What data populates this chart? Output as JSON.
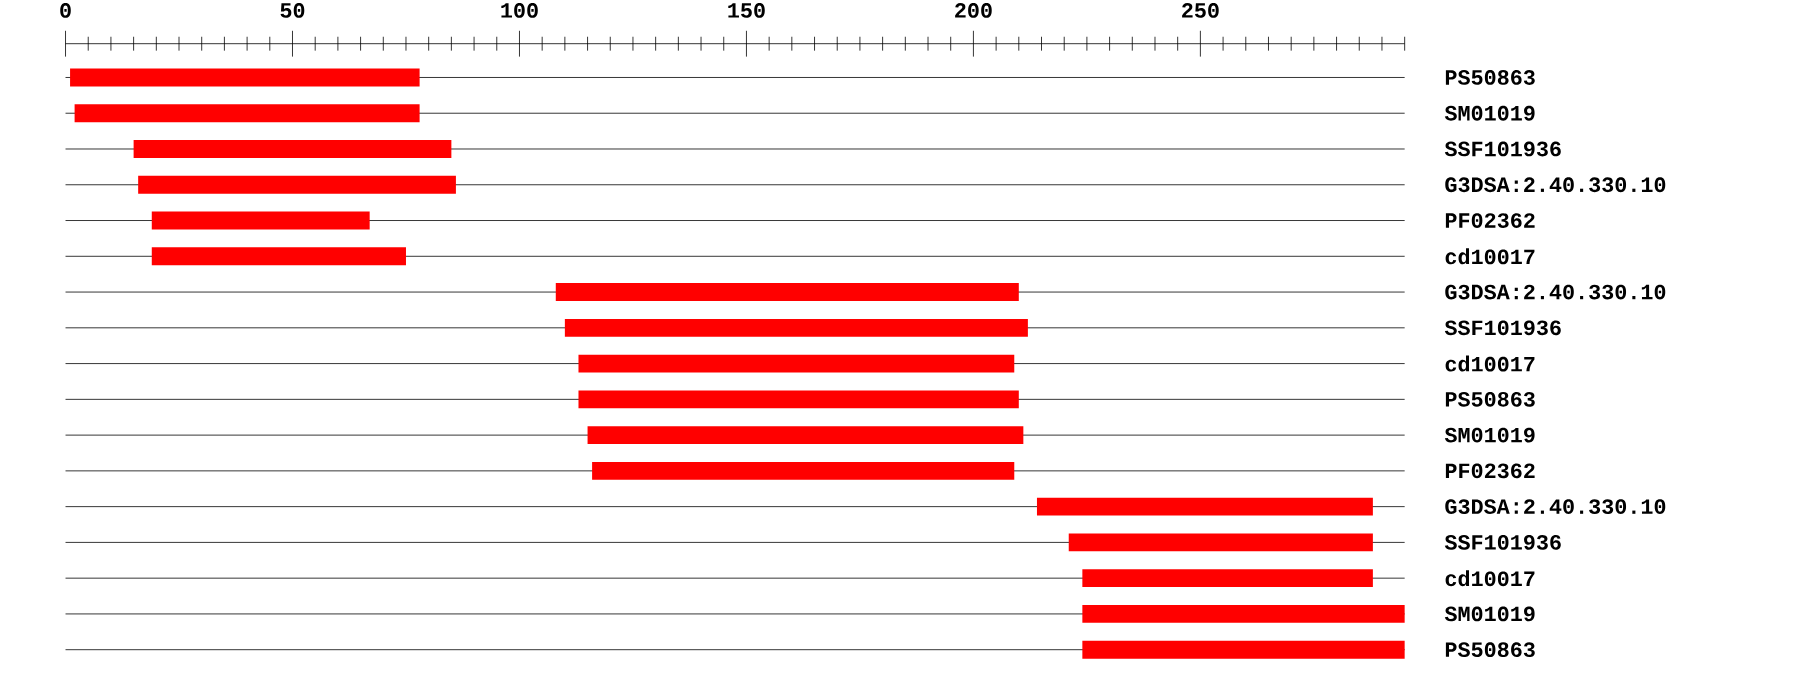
{
  "chart_data": {
    "type": "bar",
    "orientation": "horizontal",
    "color": "#ff0000",
    "grid": "y",
    "categories": [
      "PS50863",
      "SM01019",
      "SSF101936",
      "G3DSA:2.40.330.10",
      "PF02362",
      "cd10017",
      "G3DSA:2.40.330.10",
      "SSF101936",
      "cd10017",
      "PS50863",
      "SM01019",
      "PF02362",
      "G3DSA:2.40.330.10",
      "SSF101936",
      "cd10017",
      "SM01019",
      "PS50863"
    ],
    "base": [
      1,
      2,
      15,
      16,
      19,
      19,
      108,
      110,
      113,
      113,
      115,
      116,
      214,
      221,
      224,
      224,
      224
    ],
    "values": [
      77,
      76,
      70,
      70,
      48,
      56,
      102,
      102,
      96,
      97,
      96,
      93,
      74,
      67,
      64,
      71,
      71
    ],
    "xlim": [
      0,
      295
    ],
    "xticks": [
      0,
      {
        "value": 5,
        "label": null
      },
      {
        "value": 10,
        "label": null
      },
      {
        "value": 15,
        "label": null
      },
      {
        "value": 20,
        "label": null
      },
      {
        "value": 25,
        "label": null
      },
      {
        "value": 30,
        "label": null
      },
      {
        "value": 35,
        "label": null
      },
      {
        "value": 40,
        "label": null
      },
      {
        "value": 45,
        "label": null
      },
      50,
      {
        "value": 55,
        "label": null
      },
      {
        "value": 60,
        "label": null
      },
      {
        "value": 65,
        "label": null
      },
      {
        "value": 70,
        "label": null
      },
      {
        "value": 75,
        "label": null
      },
      {
        "value": 80,
        "label": null
      },
      {
        "value": 85,
        "label": null
      },
      {
        "value": 90,
        "label": null
      },
      {
        "value": 95,
        "label": null
      },
      100,
      {
        "value": 105,
        "label": null
      },
      {
        "value": 110,
        "label": null
      },
      {
        "value": 115,
        "label": null
      },
      {
        "value": 120,
        "label": null
      },
      {
        "value": 125,
        "label": null
      },
      {
        "value": 130,
        "label": null
      },
      {
        "value": 135,
        "label": null
      },
      {
        "value": 140,
        "label": null
      },
      {
        "value": 145,
        "label": null
      },
      150,
      {
        "value": 155,
        "label": null
      },
      {
        "value": 160,
        "label": null
      },
      {
        "value": 165,
        "label": null
      },
      {
        "value": 170,
        "label": null
      },
      {
        "value": 175,
        "label": null
      },
      {
        "value": 180,
        "label": null
      },
      {
        "value": 185,
        "label": null
      },
      {
        "value": 190,
        "label": null
      },
      {
        "value": 195,
        "label": null
      },
      200,
      {
        "value": 205,
        "label": null
      },
      {
        "value": 210,
        "label": null
      },
      {
        "value": 215,
        "label": null
      },
      {
        "value": 220,
        "label": null
      },
      {
        "value": 225,
        "label": null
      },
      {
        "value": 230,
        "label": null
      },
      {
        "value": 235,
        "label": null
      },
      {
        "value": 240,
        "label": null
      },
      {
        "value": 245,
        "label": null
      },
      250,
      {
        "value": 255,
        "label": null
      },
      {
        "value": 260,
        "label": null
      },
      {
        "value": 265,
        "label": null
      },
      {
        "value": 270,
        "label": null
      },
      {
        "value": 275,
        "label": null
      },
      {
        "value": 280,
        "label": null
      },
      {
        "value": 285,
        "label": null
      },
      {
        "value": 290,
        "label": null
      },
      {
        "value": 295,
        "label": null
      }
    ]
  }
}
